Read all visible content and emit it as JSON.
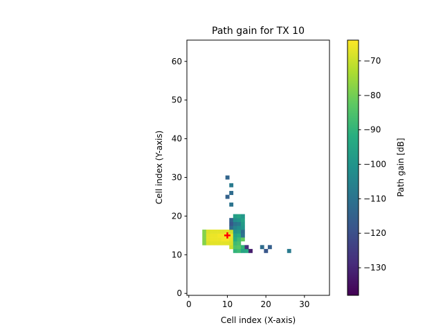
{
  "chart_data": {
    "type": "heatmap",
    "title": "Path gain for TX 10",
    "xlabel": "Cell index (X-axis)",
    "ylabel": "Cell index (Y-axis)",
    "xlim": [
      -0.5,
      36.5
    ],
    "ylim": [
      -0.5,
      65.5
    ],
    "xticks": [
      0,
      10,
      20,
      30
    ],
    "yticks": [
      0,
      10,
      20,
      30,
      40,
      50,
      60
    ],
    "grid": false,
    "colorbar": {
      "label": "Path gain [dB]",
      "colormap": "viridis",
      "range": [
        -138,
        -64
      ],
      "ticks": [
        -70,
        -80,
        -90,
        -100,
        -110,
        -120,
        -130
      ]
    },
    "transmitter": {
      "x": 10,
      "y": 15,
      "marker": "plus",
      "color": "#ff0000"
    },
    "cells": [
      {
        "x": 4,
        "y": 13,
        "v": -78
      },
      {
        "x": 4,
        "y": 14,
        "v": -78
      },
      {
        "x": 4,
        "y": 15,
        "v": -78
      },
      {
        "x": 4,
        "y": 16,
        "v": -78
      },
      {
        "x": 5,
        "y": 13,
        "v": -68
      },
      {
        "x": 5,
        "y": 14,
        "v": -67
      },
      {
        "x": 5,
        "y": 15,
        "v": -67
      },
      {
        "x": 5,
        "y": 16,
        "v": -68
      },
      {
        "x": 6,
        "y": 13,
        "v": -67
      },
      {
        "x": 6,
        "y": 14,
        "v": -66
      },
      {
        "x": 6,
        "y": 15,
        "v": -66
      },
      {
        "x": 6,
        "y": 16,
        "v": -67
      },
      {
        "x": 7,
        "y": 13,
        "v": -67
      },
      {
        "x": 7,
        "y": 14,
        "v": -66
      },
      {
        "x": 7,
        "y": 15,
        "v": -66
      },
      {
        "x": 7,
        "y": 16,
        "v": -67
      },
      {
        "x": 8,
        "y": 13,
        "v": -67
      },
      {
        "x": 8,
        "y": 14,
        "v": -66
      },
      {
        "x": 8,
        "y": 15,
        "v": -65
      },
      {
        "x": 8,
        "y": 16,
        "v": -67
      },
      {
        "x": 9,
        "y": 13,
        "v": -67
      },
      {
        "x": 9,
        "y": 14,
        "v": -65
      },
      {
        "x": 9,
        "y": 15,
        "v": -65
      },
      {
        "x": 9,
        "y": 16,
        "v": -67
      },
      {
        "x": 10,
        "y": 13,
        "v": -67
      },
      {
        "x": 10,
        "y": 14,
        "v": -65
      },
      {
        "x": 10,
        "y": 15,
        "v": -64
      },
      {
        "x": 10,
        "y": 16,
        "v": -67
      },
      {
        "x": 11,
        "y": 12,
        "v": -70
      },
      {
        "x": 11,
        "y": 13,
        "v": -68
      },
      {
        "x": 11,
        "y": 14,
        "v": -67
      },
      {
        "x": 11,
        "y": 15,
        "v": -66
      },
      {
        "x": 11,
        "y": 16,
        "v": -70
      },
      {
        "x": 11,
        "y": 17,
        "v": -112
      },
      {
        "x": 11,
        "y": 18,
        "v": -118
      },
      {
        "x": 11,
        "y": 19,
        "v": -115
      },
      {
        "x": 11,
        "y": 23,
        "v": -110
      },
      {
        "x": 11,
        "y": 26,
        "v": -112
      },
      {
        "x": 11,
        "y": 28,
        "v": -108
      },
      {
        "x": 10,
        "y": 25,
        "v": -115
      },
      {
        "x": 10,
        "y": 30,
        "v": -114
      },
      {
        "x": 12,
        "y": 11,
        "v": -90
      },
      {
        "x": 12,
        "y": 12,
        "v": -85
      },
      {
        "x": 12,
        "y": 13,
        "v": -88
      },
      {
        "x": 12,
        "y": 14,
        "v": -92
      },
      {
        "x": 12,
        "y": 15,
        "v": -95
      },
      {
        "x": 12,
        "y": 16,
        "v": -100
      },
      {
        "x": 12,
        "y": 17,
        "v": -105
      },
      {
        "x": 12,
        "y": 18,
        "v": -110
      },
      {
        "x": 12,
        "y": 19,
        "v": -102
      },
      {
        "x": 12,
        "y": 20,
        "v": -97
      },
      {
        "x": 13,
        "y": 11,
        "v": -88
      },
      {
        "x": 13,
        "y": 12,
        "v": -84
      },
      {
        "x": 13,
        "y": 13,
        "v": -86
      },
      {
        "x": 13,
        "y": 14,
        "v": -88
      },
      {
        "x": 13,
        "y": 15,
        "v": -92
      },
      {
        "x": 13,
        "y": 16,
        "v": -98
      },
      {
        "x": 13,
        "y": 17,
        "v": -102
      },
      {
        "x": 13,
        "y": 18,
        "v": -108
      },
      {
        "x": 13,
        "y": 19,
        "v": -100
      },
      {
        "x": 13,
        "y": 20,
        "v": -95
      },
      {
        "x": 14,
        "y": 11,
        "v": -95
      },
      {
        "x": 14,
        "y": 12,
        "v": -90
      },
      {
        "x": 14,
        "y": 14,
        "v": -82
      },
      {
        "x": 14,
        "y": 15,
        "v": -110
      },
      {
        "x": 14,
        "y": 16,
        "v": -112
      },
      {
        "x": 14,
        "y": 17,
        "v": -100
      },
      {
        "x": 14,
        "y": 18,
        "v": -98
      },
      {
        "x": 14,
        "y": 19,
        "v": -96
      },
      {
        "x": 14,
        "y": 20,
        "v": -99
      },
      {
        "x": 15,
        "y": 11,
        "v": -93
      },
      {
        "x": 15,
        "y": 12,
        "v": -128
      },
      {
        "x": 16,
        "y": 11,
        "v": -132
      },
      {
        "x": 19,
        "y": 12,
        "v": -112
      },
      {
        "x": 20,
        "y": 11,
        "v": -118
      },
      {
        "x": 21,
        "y": 12,
        "v": -116
      },
      {
        "x": 26,
        "y": 11,
        "v": -108
      }
    ]
  }
}
